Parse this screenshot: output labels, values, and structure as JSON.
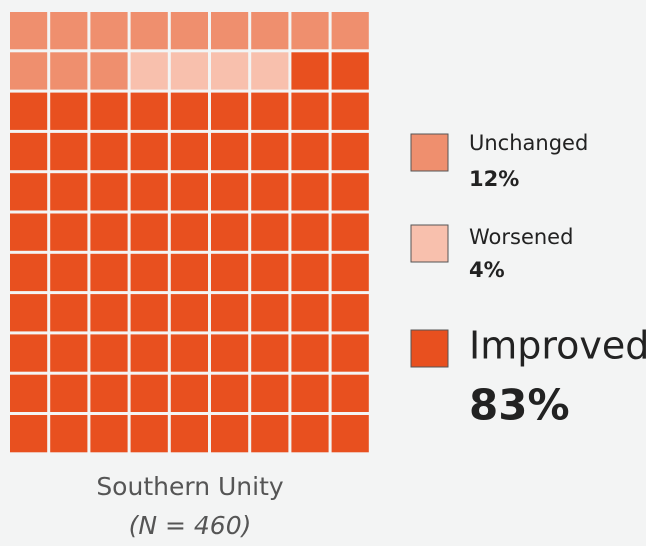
{
  "chart_data": {
    "type": "waffle",
    "title": "Southern Unity",
    "subtitle": "(N = 460)",
    "series": [
      {
        "name": "Unchanged",
        "color": "#ef8f6e",
        "values": [
          12
        ],
        "value_labels": [
          "12%"
        ]
      },
      {
        "name": "Worsened",
        "color": "#f8c0ad",
        "values": [
          4
        ],
        "value_labels": [
          "4%"
        ]
      },
      {
        "name": "Improved",
        "color": "#e8501f",
        "values": [
          83
        ],
        "value_labels": [
          "83%"
        ]
      }
    ]
  }
}
